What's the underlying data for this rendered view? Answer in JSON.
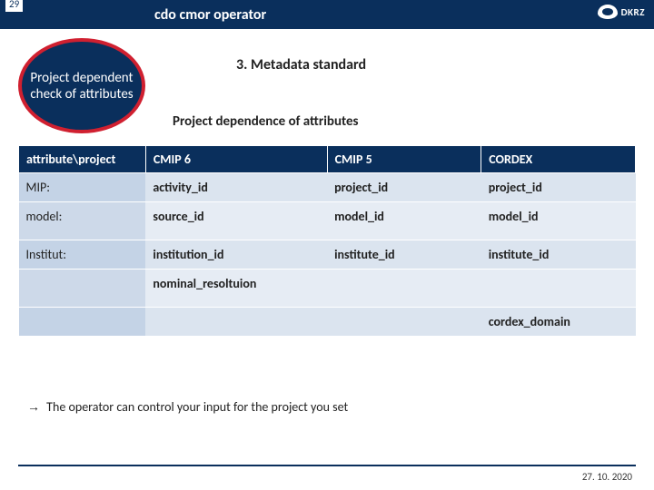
{
  "page_number": "29",
  "header_title": "cdo cmor operator",
  "logo_text": "DKRZ",
  "bubble_text": "Project dependent check of attributes",
  "section_title": "3. Metadata standard",
  "subheading": "Project dependence of attributes",
  "columns": [
    "attribute\\project",
    "CMIP 6",
    "CMIP 5",
    "CORDEX"
  ],
  "rows": [
    [
      "MIP:",
      "activity_id",
      "project_id",
      "project_id"
    ],
    [
      "model:",
      "source_id",
      "model_id",
      "model_id"
    ],
    [
      "Institut:",
      "institution_id",
      "institute_id",
      "institute_id"
    ],
    [
      "",
      "nominal_resoltuion",
      "",
      ""
    ],
    [
      "",
      "",
      "",
      "cordex_domain"
    ]
  ],
  "note_arrow": "→",
  "note_text": "The operator can control your input for the project you set",
  "footer_date": "27. 10. 2020",
  "colors": {
    "brand": "#0a2f5c",
    "accent": "#d02030",
    "row_bg": "#dbe4ef",
    "row_alt_bg": "#e6ecf4"
  }
}
